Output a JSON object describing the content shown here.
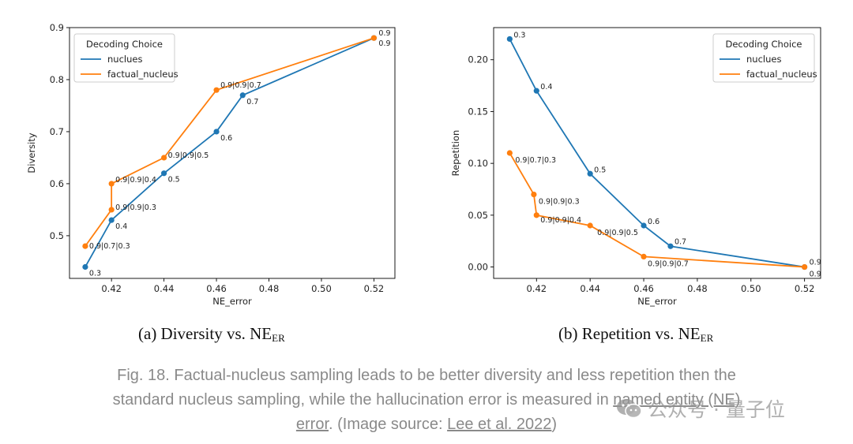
{
  "colors": {
    "nucleus": "#1f77b4",
    "factual": "#ff7f0e",
    "axis": "#000000"
  },
  "chart_data": [
    {
      "type": "line",
      "xlabel": "NE_error",
      "ylabel": "Diversity",
      "xlim": [
        0.404,
        0.528
      ],
      "ylim": [
        0.418,
        0.9
      ],
      "xticks": [
        {
          "v": 0.42,
          "label": "0.42"
        },
        {
          "v": 0.44,
          "label": "0.44"
        },
        {
          "v": 0.46,
          "label": "0.46"
        },
        {
          "v": 0.48,
          "label": "0.48"
        },
        {
          "v": 0.5,
          "label": "0.50"
        },
        {
          "v": 0.52,
          "label": "0.52"
        }
      ],
      "yticks": [
        {
          "v": 0.5,
          "label": "0.5"
        },
        {
          "v": 0.6,
          "label": "0.6"
        },
        {
          "v": 0.7,
          "label": "0.7"
        },
        {
          "v": 0.8,
          "label": "0.8"
        },
        {
          "v": 0.9,
          "label": "0.9"
        }
      ],
      "legend": {
        "title": "Decoding Choice",
        "position": "top-left"
      },
      "series": [
        {
          "name": "nuclues",
          "color": "#1f77b4",
          "points": [
            {
              "x": 0.41,
              "y": 0.44,
              "label": "0.3"
            },
            {
              "x": 0.42,
              "y": 0.53,
              "label": "0.4"
            },
            {
              "x": 0.44,
              "y": 0.62,
              "label": "0.5"
            },
            {
              "x": 0.46,
              "y": 0.7,
              "label": "0.6"
            },
            {
              "x": 0.47,
              "y": 0.77,
              "label": "0.7"
            },
            {
              "x": 0.52,
              "y": 0.88,
              "label": "0.9"
            }
          ]
        },
        {
          "name": "factual_nucleus",
          "color": "#ff7f0e",
          "points": [
            {
              "x": 0.41,
              "y": 0.48,
              "label": "0.9|0.7|0.3"
            },
            {
              "x": 0.42,
              "y": 0.55,
              "label": "0.9|0.9|0.3"
            },
            {
              "x": 0.42,
              "y": 0.6,
              "label": "0.9|0.9|0.4"
            },
            {
              "x": 0.44,
              "y": 0.65,
              "label": "0.9|0.9|0.5"
            },
            {
              "x": 0.46,
              "y": 0.78,
              "label": "0.9|0.9|0.7"
            },
            {
              "x": 0.52,
              "y": 0.88,
              "label": "0.9"
            }
          ]
        }
      ]
    },
    {
      "type": "line",
      "xlabel": "NE_error",
      "ylabel": "Repetition",
      "xlim": [
        0.404,
        0.526
      ],
      "ylim": [
        -0.011,
        0.231
      ],
      "xticks": [
        {
          "v": 0.42,
          "label": "0.42"
        },
        {
          "v": 0.44,
          "label": "0.44"
        },
        {
          "v": 0.46,
          "label": "0.46"
        },
        {
          "v": 0.48,
          "label": "0.48"
        },
        {
          "v": 0.5,
          "label": "0.50"
        },
        {
          "v": 0.52,
          "label": "0.52"
        }
      ],
      "yticks": [
        {
          "v": 0.0,
          "label": "0.00"
        },
        {
          "v": 0.05,
          "label": "0.05"
        },
        {
          "v": 0.1,
          "label": "0.10"
        },
        {
          "v": 0.15,
          "label": "0.15"
        },
        {
          "v": 0.2,
          "label": "0.20"
        }
      ],
      "legend": {
        "title": "Decoding Choice",
        "position": "top-right"
      },
      "series": [
        {
          "name": "nuclues",
          "color": "#1f77b4",
          "points": [
            {
              "x": 0.41,
              "y": 0.22,
              "label": "0.3"
            },
            {
              "x": 0.42,
              "y": 0.17,
              "label": "0.4"
            },
            {
              "x": 0.44,
              "y": 0.09,
              "label": "0.5"
            },
            {
              "x": 0.46,
              "y": 0.04,
              "label": "0.6"
            },
            {
              "x": 0.47,
              "y": 0.02,
              "label": "0.7"
            },
            {
              "x": 0.52,
              "y": 0.0,
              "label": "0.9"
            }
          ]
        },
        {
          "name": "factual_nucleus",
          "color": "#ff7f0e",
          "points": [
            {
              "x": 0.41,
              "y": 0.11,
              "label": "0.9|0.7|0.3"
            },
            {
              "x": 0.419,
              "y": 0.07,
              "label": "0.9|0.9|0.3"
            },
            {
              "x": 0.42,
              "y": 0.05,
              "label": "0.9|0.9|0.4"
            },
            {
              "x": 0.44,
              "y": 0.04,
              "label": "0.9|0.9|0.5"
            },
            {
              "x": 0.46,
              "y": 0.01,
              "label": "0.9|0.9|0.7"
            },
            {
              "x": 0.52,
              "y": 0.0,
              "label": "0.9"
            }
          ]
        }
      ]
    }
  ],
  "subcaptions": {
    "a_text": "(a) Diversity vs. NE",
    "a_sub": "ER",
    "b_text": "(b) Repetition vs. NE",
    "b_sub": "ER"
  },
  "caption": {
    "part1": "Fig. 18. Factual-nucleus sampling leads to be better diversity and less repetition then the standard nucleus sampling, while the hallucination error is measured in ",
    "link1": "named entity (NE) error",
    "part2": ". (Image source: ",
    "link2": "Lee et al. 2022",
    "part3": ")"
  },
  "watermark": {
    "text": "公众号 · 量子位",
    "icon": "wechat-icon"
  }
}
